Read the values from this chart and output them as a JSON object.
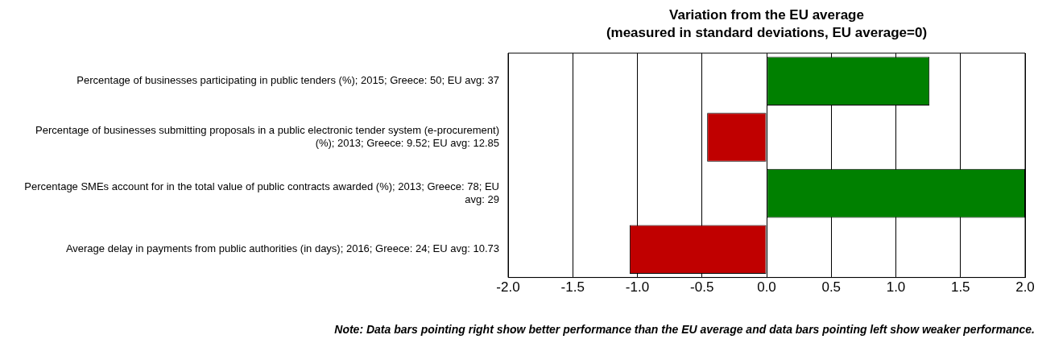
{
  "chart_data": {
    "type": "bar",
    "orientation": "horizontal",
    "title": "Variation from the EU average",
    "subtitle": "(measured in standard deviations, EU average=0)",
    "categories": [
      "Percentage of businesses participating in public tenders (%); 2015; Greece: 50; EU avg: 37",
      "Percentage of businesses submitting proposals in a public electronic tender system (e-procurement) (%); 2013; Greece: 9.52; EU avg: 12.85",
      "Percentage SMEs account for in the total value of public contracts awarded (%); 2013; Greece: 78; EU avg: 29",
      "Average delay in payments from public authorities (in days); 2016; Greece: 24; EU avg: 10.73"
    ],
    "values": [
      1.26,
      -0.46,
      2.0,
      -1.06
    ],
    "colors": [
      "#008000",
      "#c00000",
      "#008000",
      "#c00000"
    ],
    "xlim": [
      -2,
      2
    ],
    "xticks": [
      {
        "value": -2,
        "label": "-2.0"
      },
      {
        "value": -1.5,
        "label": "-1.5"
      },
      {
        "value": -1,
        "label": "-1.0"
      },
      {
        "value": -0.5,
        "label": "-0.5"
      },
      {
        "value": 0,
        "label": "0.0"
      },
      {
        "value": 0.5,
        "label": "0.5"
      },
      {
        "value": 1,
        "label": "1.0"
      },
      {
        "value": 1.5,
        "label": "1.5"
      },
      {
        "value": 2,
        "label": "2.0"
      }
    ],
    "grid": "x",
    "legend": false,
    "annotations": [
      "Note: Data bars pointing right show better performance than the EU average and data bars pointing left show weaker performance."
    ]
  }
}
